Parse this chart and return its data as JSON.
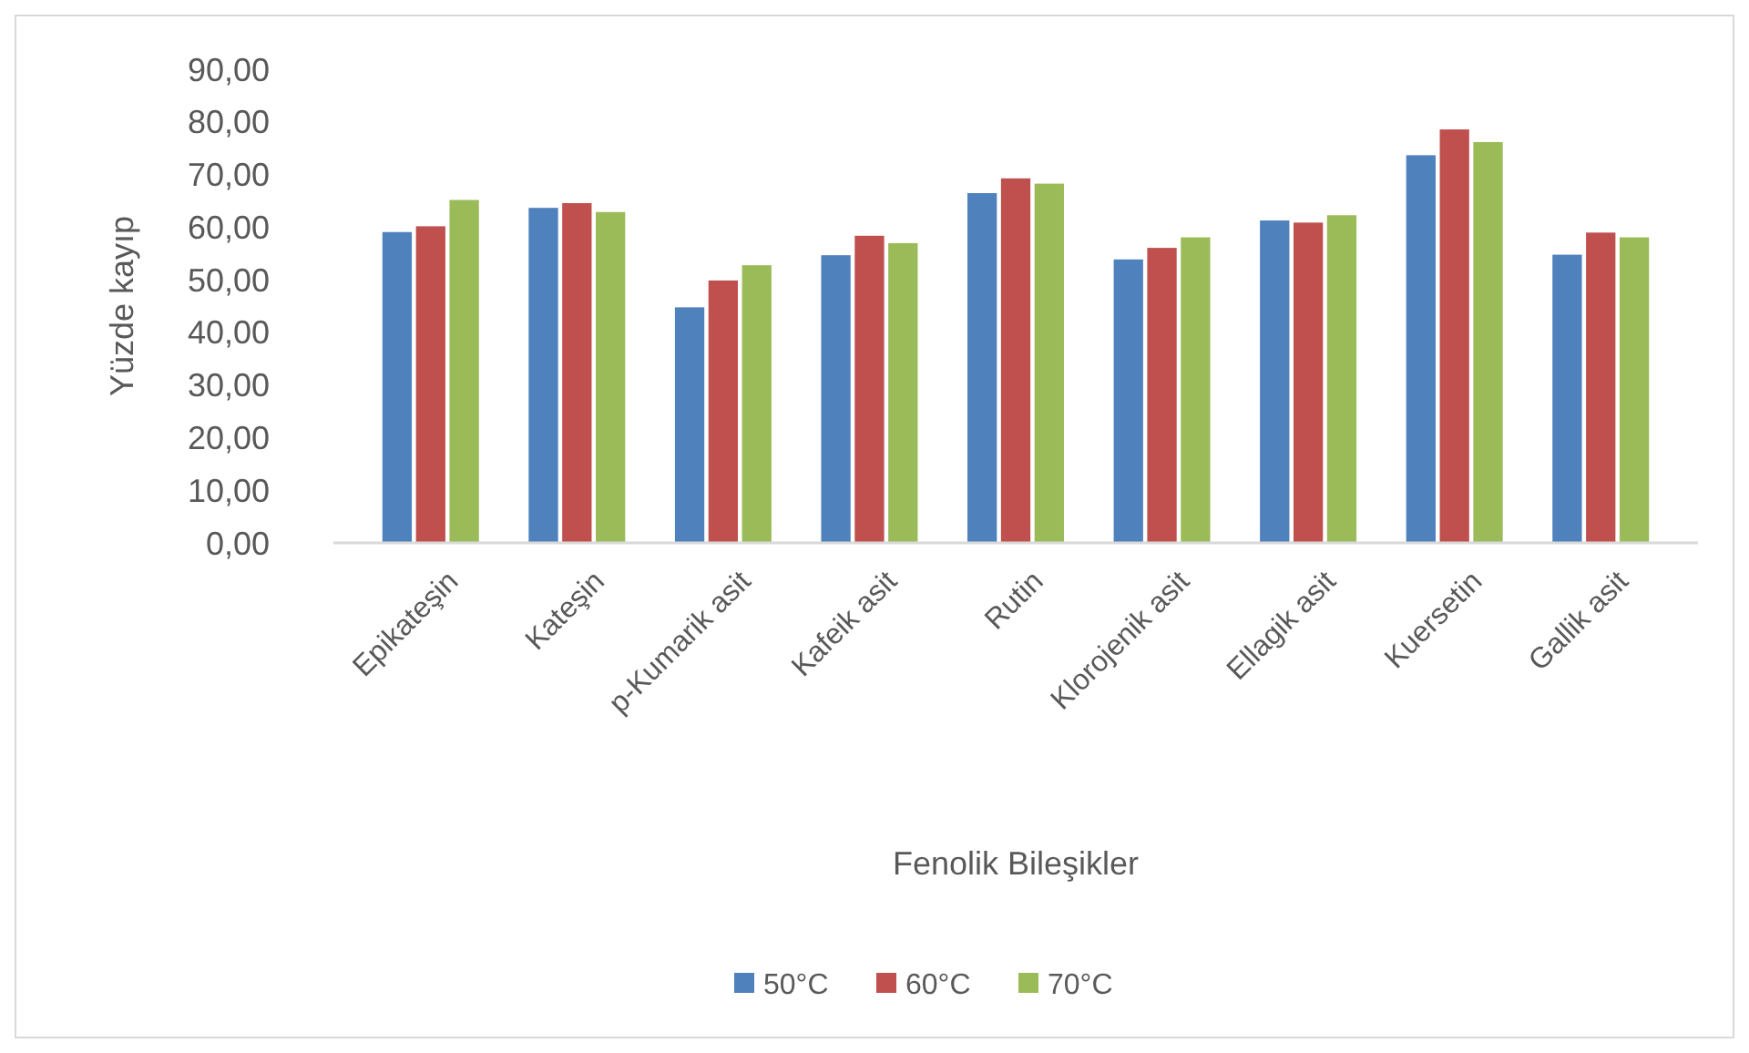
{
  "chart_data": {
    "type": "bar",
    "xlabel": "Fenolik Bileşikler",
    "ylabel": "Yüzde kayıp",
    "categories": [
      "Epikateşin",
      "Kateşin",
      "p-Kumarik asit",
      "Kafeik asit",
      "Rutin",
      "Klorojenik asit",
      "Ellagik asit",
      "Kuersetin",
      "Gallik asit"
    ],
    "series": [
      {
        "name": "50°C",
        "color": "#4f81bd",
        "values": [
          59.2,
          63.8,
          44.9,
          54.8,
          66.6,
          54.0,
          61.4,
          73.8,
          54.9
        ]
      },
      {
        "name": "60°C",
        "color": "#c0504d",
        "values": [
          60.3,
          64.7,
          50.0,
          58.5,
          69.4,
          56.2,
          61.0,
          78.7,
          59.1
        ]
      },
      {
        "name": "70°C",
        "color": "#9bbb59",
        "values": [
          65.3,
          63.0,
          52.9,
          57.1,
          68.4,
          58.2,
          62.4,
          76.3,
          58.2
        ]
      }
    ],
    "ylim": [
      0,
      90
    ],
    "yticks": [
      {
        "value": 0,
        "label": "0,00"
      },
      {
        "value": 10,
        "label": "10,00"
      },
      {
        "value": 20,
        "label": "20,00"
      },
      {
        "value": 30,
        "label": "30,00"
      },
      {
        "value": 40,
        "label": "40,00"
      },
      {
        "value": 50,
        "label": "50,00"
      },
      {
        "value": 60,
        "label": "60,00"
      },
      {
        "value": 70,
        "label": "70,00"
      },
      {
        "value": 80,
        "label": "80,00"
      },
      {
        "value": 90,
        "label": "90,00"
      }
    ],
    "grid": false,
    "legend": "bottom"
  }
}
